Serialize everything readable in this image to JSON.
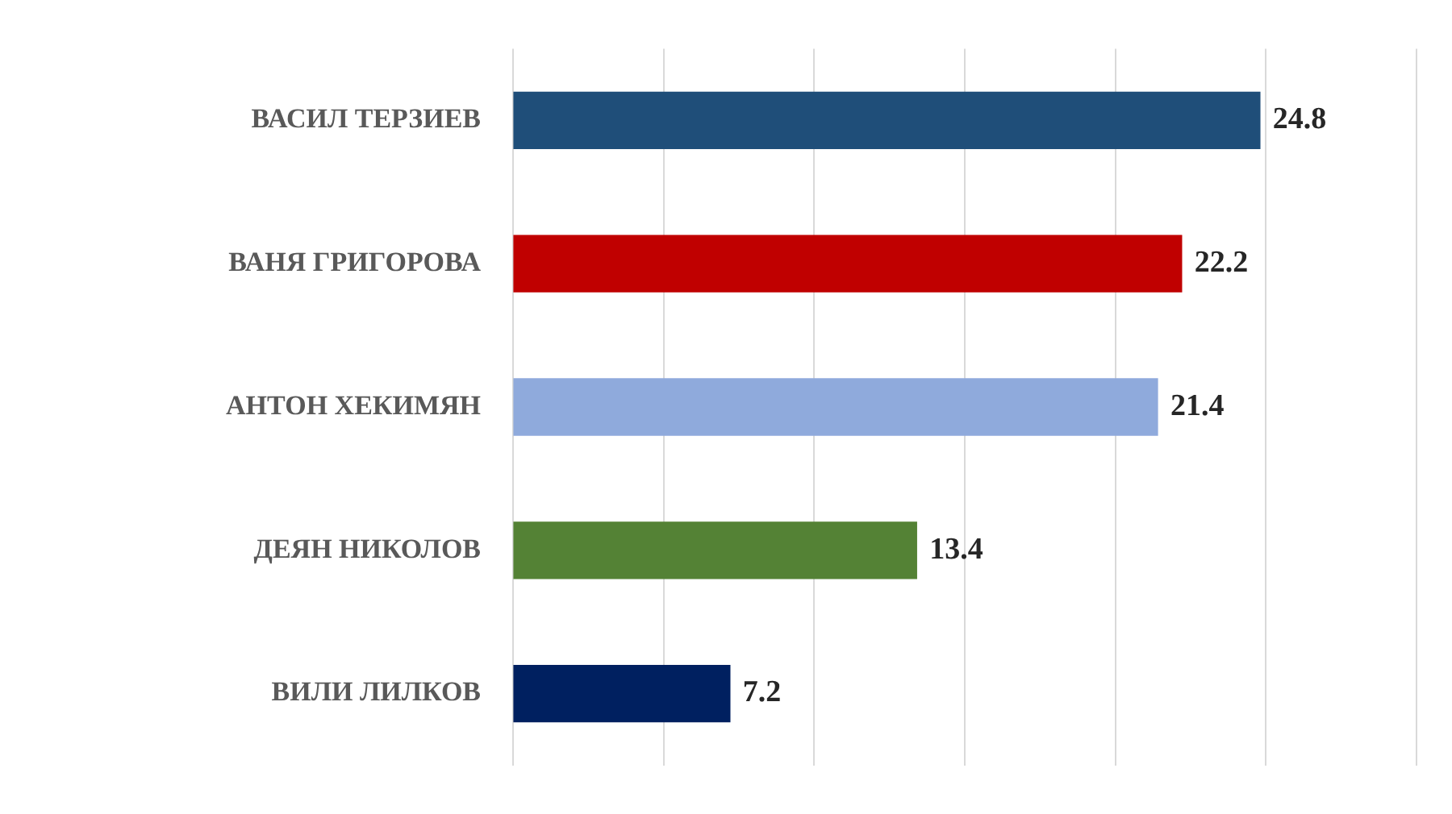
{
  "chart_data": {
    "type": "bar",
    "orientation": "horizontal",
    "categories": [
      "ВАСИЛ ТЕРЗИЕВ",
      "ВАНЯ ГРИГОРОВА",
      "АНТОН ХЕКИМЯН",
      "ДЕЯН НИКОЛОВ",
      "ВИЛИ ЛИЛКОВ"
    ],
    "values": [
      24.8,
      22.2,
      21.4,
      13.4,
      7.2
    ],
    "colors": [
      "#1f4e79",
      "#c00000",
      "#8faadc",
      "#548235",
      "#002060"
    ],
    "xlim": [
      0,
      30
    ],
    "xticks": [
      {
        "value": 0,
        "label": null
      },
      {
        "value": 5,
        "label": null
      },
      {
        "value": 10,
        "label": null
      },
      {
        "value": 15,
        "label": null
      },
      {
        "value": 20,
        "label": null
      },
      {
        "value": 25,
        "label": null
      },
      {
        "value": 30,
        "label": null
      }
    ],
    "grid": "x",
    "tick_labels": "y",
    "data_labels": true,
    "legend": false
  }
}
